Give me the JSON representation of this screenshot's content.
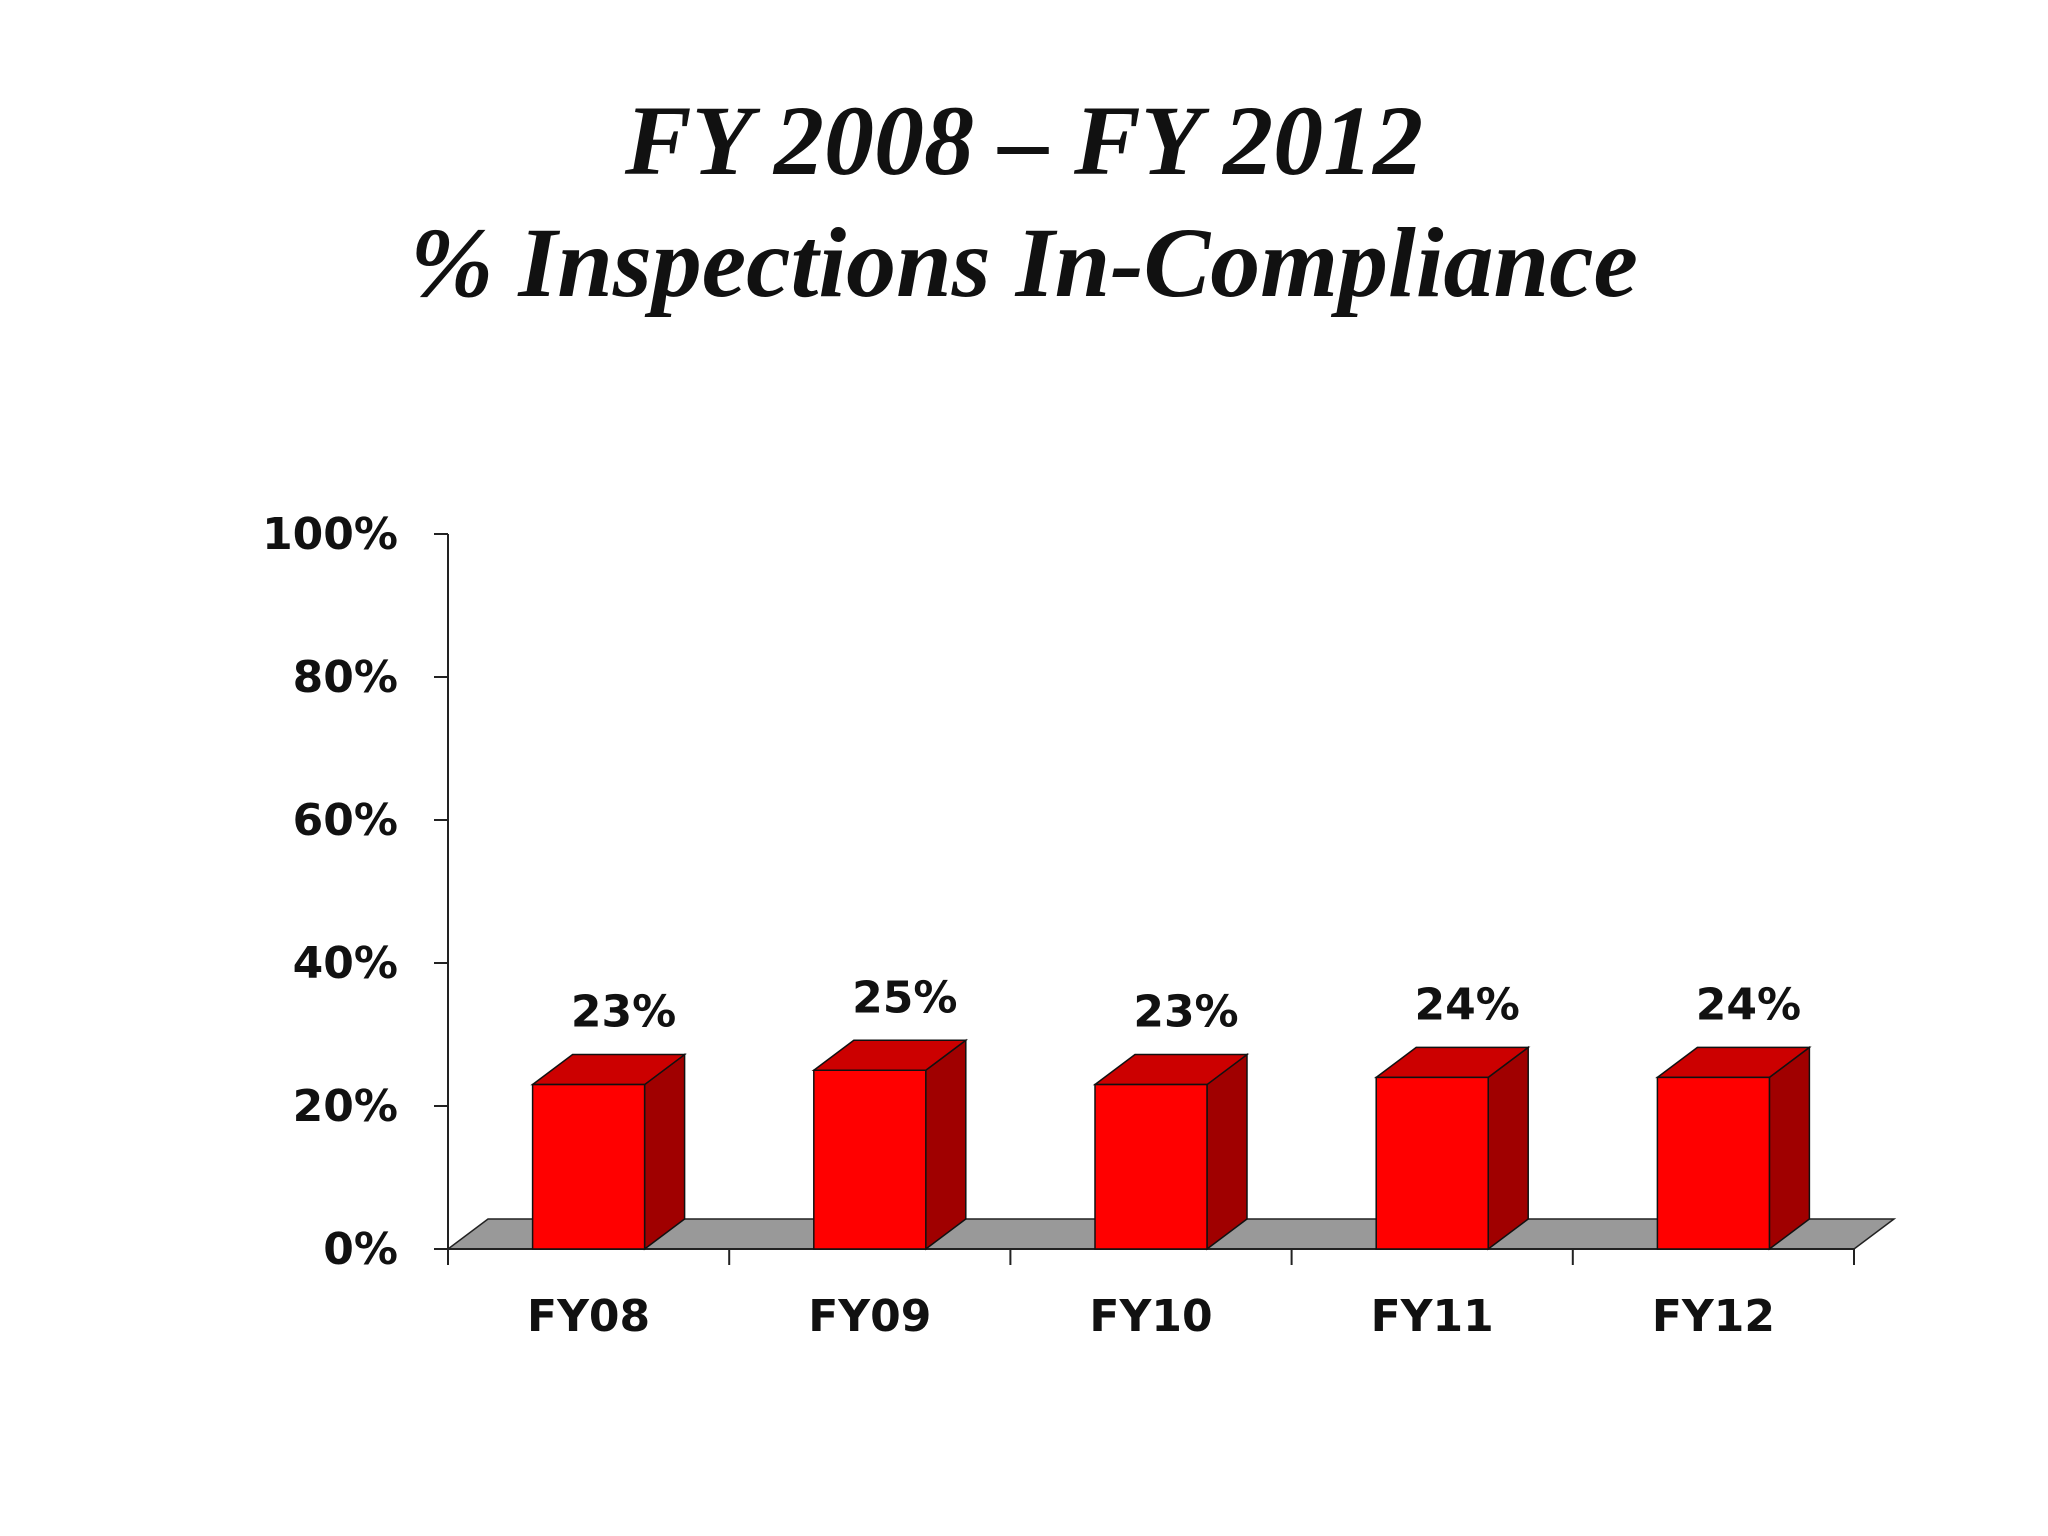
{
  "title": {
    "line1": "FY 2008 – FY 2012",
    "line2": "% Inspections In-Compliance"
  },
  "colors": {
    "bar_front": "#ff0000",
    "bar_top": "#cc0000",
    "bar_side": "#a00000",
    "floor": "#999999"
  },
  "chart_data": {
    "type": "bar",
    "title": "FY 2008 – FY 2012 % Inspections In-Compliance",
    "categories": [
      "FY08",
      "FY09",
      "FY10",
      "FY11",
      "FY12"
    ],
    "values": [
      23,
      25,
      23,
      24,
      24
    ],
    "data_labels": [
      "23%",
      "25%",
      "23%",
      "24%",
      "24%"
    ],
    "yticks": [
      "0%",
      "20%",
      "40%",
      "60%",
      "80%",
      "100%"
    ],
    "ylim": [
      0,
      100
    ],
    "xlabel": "",
    "ylabel": "",
    "grid": false,
    "legend": "none",
    "style": "3d"
  }
}
